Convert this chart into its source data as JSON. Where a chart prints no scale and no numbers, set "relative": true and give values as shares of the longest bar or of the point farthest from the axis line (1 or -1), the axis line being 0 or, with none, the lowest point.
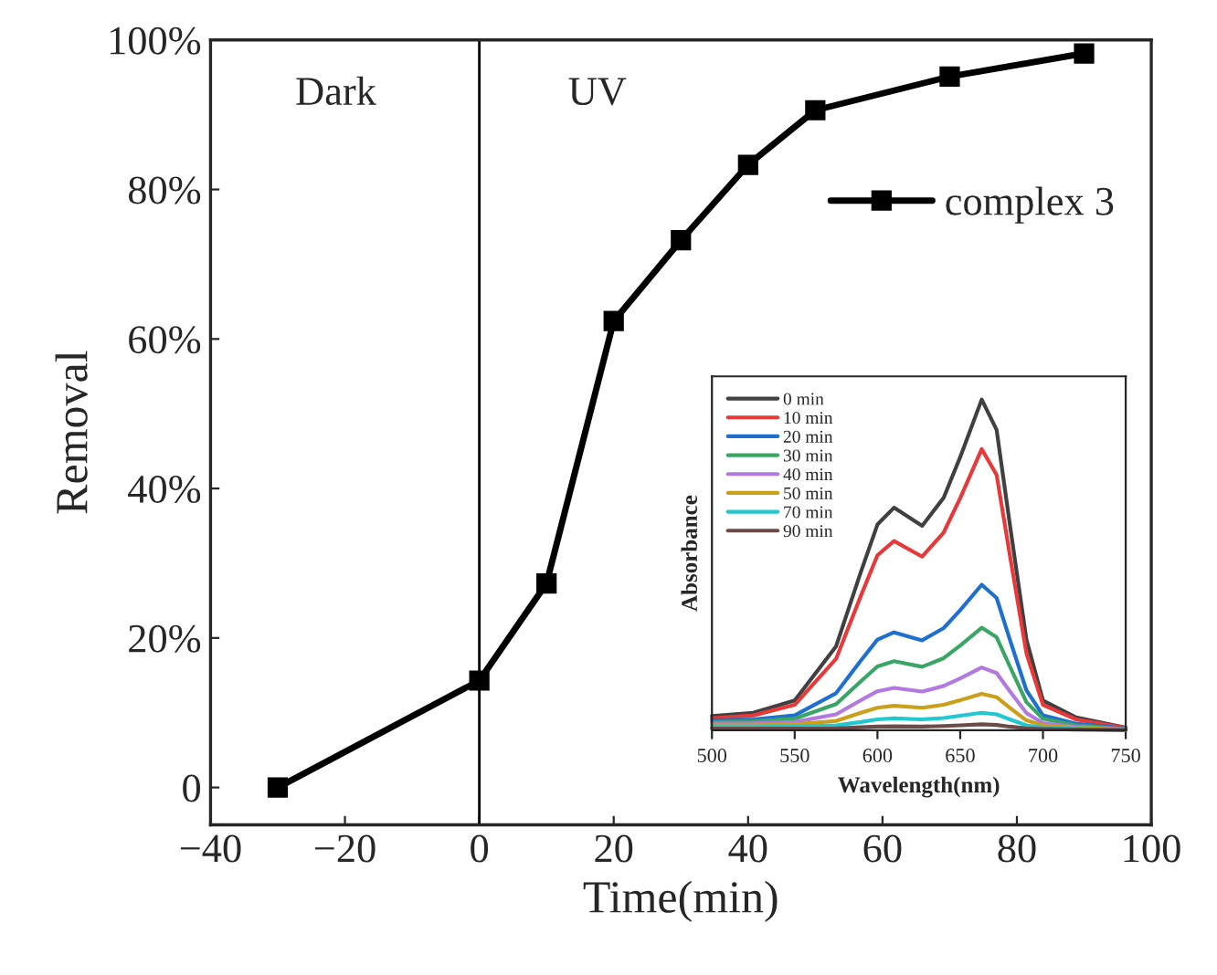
{
  "chart_data": [
    {
      "type": "line",
      "xlabel": "Time(min)",
      "ylabel": "Removal",
      "x": [
        -30,
        0,
        10,
        20,
        30,
        40,
        50,
        70,
        90
      ],
      "series": [
        {
          "name": "complex 3",
          "color": "#000000",
          "values": [
            0,
            14.3,
            27.3,
            62.4,
            73.2,
            83.3,
            90.6,
            95.1,
            98.2
          ]
        }
      ],
      "xlim": [
        -40,
        100
      ],
      "xticks": [
        {
          "value": -40,
          "label": "−40"
        },
        {
          "value": -20,
          "label": "−20"
        },
        0,
        20,
        40,
        60,
        80,
        100
      ],
      "ylim": [
        -5,
        100
      ],
      "yticks": [
        0,
        {
          "value": 20,
          "label": "20%"
        },
        {
          "value": 40,
          "label": "40%"
        },
        {
          "value": 60,
          "label": "60%"
        },
        {
          "value": 80,
          "label": "80%"
        },
        {
          "value": 100,
          "label": "100%"
        }
      ],
      "ref_lines": [
        {
          "axis": "x",
          "value": 0,
          "color": "#000000"
        }
      ],
      "annotations": [
        "Dark",
        "UV"
      ],
      "marker": "square",
      "line_style": "solid",
      "legend": "top right",
      "grid": false
    },
    {
      "type": "line",
      "xlabel": "Wavelength(nm)",
      "ylabel": "Absorbance",
      "relative": true,
      "tick_labels": "x",
      "x": [
        500,
        525,
        550,
        575,
        590,
        600,
        610,
        627,
        640,
        650,
        663,
        672,
        680,
        690,
        700,
        720,
        750
      ],
      "xlim": [
        500,
        750
      ],
      "xticks": [
        500,
        550,
        600,
        650,
        700,
        750
      ],
      "legend": "top left",
      "grid": false,
      "marker": "none",
      "line_style": "solid",
      "series": [
        {
          "name": "0 min",
          "color": "#404040",
          "values": [
            0.043,
            0.053,
            0.09,
            0.254,
            0.479,
            0.622,
            0.673,
            0.618,
            0.703,
            0.826,
            1.0,
            0.908,
            0.622,
            0.274,
            0.09,
            0.039,
            0.008
          ]
        },
        {
          "name": "10 min",
          "color": "#e8393a",
          "values": [
            0.036,
            0.045,
            0.077,
            0.216,
            0.407,
            0.529,
            0.572,
            0.525,
            0.598,
            0.702,
            0.85,
            0.772,
            0.529,
            0.233,
            0.077,
            0.033,
            0.007
          ]
        },
        {
          "name": "20 min",
          "color": "#1f6fcf",
          "values": [
            0.03,
            0.033,
            0.045,
            0.112,
            0.211,
            0.274,
            0.296,
            0.272,
            0.309,
            0.363,
            0.44,
            0.4,
            0.274,
            0.121,
            0.045,
            0.02,
            0.005
          ]
        },
        {
          "name": "30 min",
          "color": "#3aa565",
          "values": [
            0.025,
            0.027,
            0.035,
            0.079,
            0.148,
            0.193,
            0.209,
            0.192,
            0.218,
            0.256,
            0.31,
            0.281,
            0.193,
            0.085,
            0.035,
            0.015,
            0.004
          ]
        },
        {
          "name": "40 min",
          "color": "#b27ae0",
          "values": [
            0.02,
            0.021,
            0.025,
            0.048,
            0.091,
            0.118,
            0.128,
            0.117,
            0.134,
            0.157,
            0.19,
            0.173,
            0.118,
            0.052,
            0.022,
            0.01,
            0.003
          ]
        },
        {
          "name": "50 min",
          "color": "#c9a01a",
          "values": [
            0.015,
            0.015,
            0.018,
            0.028,
            0.053,
            0.068,
            0.074,
            0.068,
            0.077,
            0.091,
            0.11,
            0.1,
            0.068,
            0.03,
            0.015,
            0.007,
            0.002
          ]
        },
        {
          "name": "70 min",
          "color": "#22c8d0",
          "values": [
            0.01,
            0.01,
            0.011,
            0.015,
            0.025,
            0.033,
            0.036,
            0.033,
            0.037,
            0.044,
            0.053,
            0.048,
            0.033,
            0.015,
            0.008,
            0.004,
            0.001
          ]
        },
        {
          "name": "90 min",
          "color": "#6b4a4a",
          "values": [
            0.005,
            0.005,
            0.005,
            0.006,
            0.009,
            0.011,
            0.012,
            0.011,
            0.013,
            0.015,
            0.018,
            0.016,
            0.011,
            0.006,
            0.004,
            0.002,
            0.001
          ]
        }
      ]
    }
  ]
}
